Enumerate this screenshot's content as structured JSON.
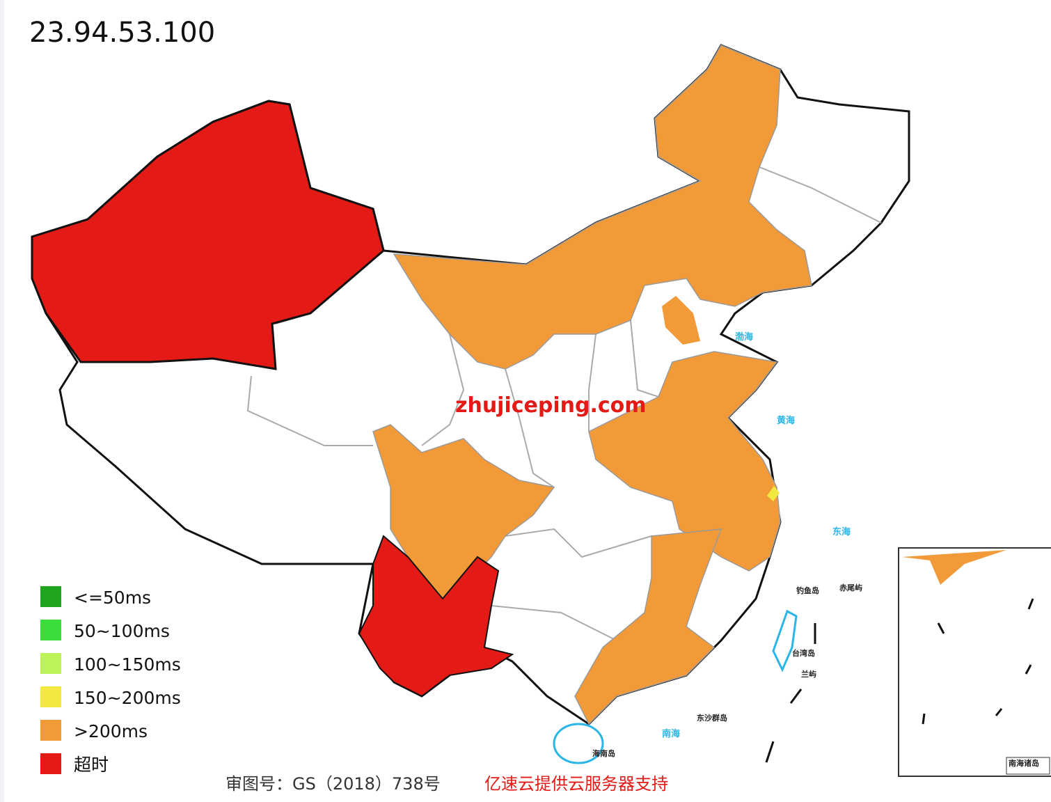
{
  "title": "23.94.53.100",
  "legend": [
    {
      "label": "<=50ms",
      "color": "#1fa51f"
    },
    {
      "label": "50~100ms",
      "color": "#3cdc3c"
    },
    {
      "label": "100~150ms",
      "color": "#bdf25a"
    },
    {
      "label": "150~200ms",
      "color": "#f3e841"
    },
    {
      "label": ">200ms",
      "color": "#f39a38"
    },
    {
      "label": "超时",
      "color": "#e31a15"
    }
  ],
  "watermark": "zhujiceping.com",
  "footer": {
    "approval": "审图号：GS（2018）738号",
    "sponsor": "亿速云提供云服务器支持"
  },
  "map_labels": [
    "渤海",
    "黄海",
    "东海",
    "南海",
    "钓鱼岛",
    "赤尾屿",
    "台湾岛",
    "兰屿",
    "东沙群岛",
    "海南岛",
    "南海诸岛"
  ]
}
